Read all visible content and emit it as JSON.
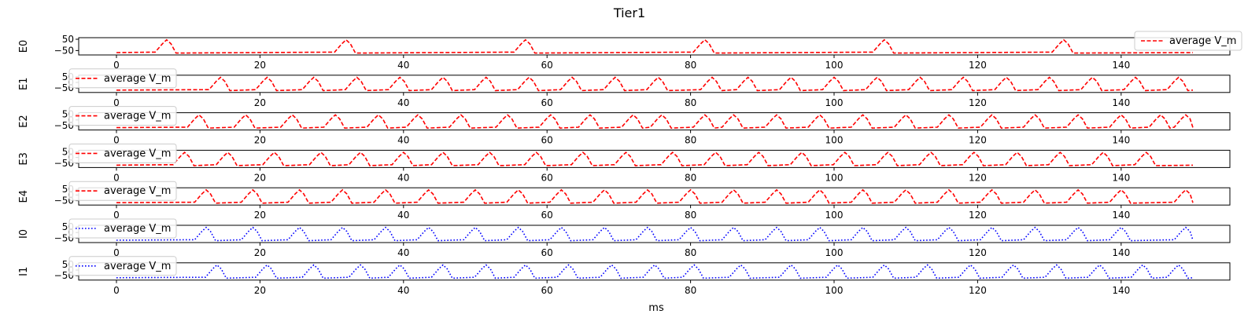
{
  "figure": {
    "title": "Tier1",
    "xlabel": "ms"
  },
  "chart_data": [
    {
      "type": "line",
      "ylabel": "E0",
      "legend_loc": "upper right",
      "series": [
        {
          "name": "average V_m",
          "color": "#ff0000",
          "style": "dashed",
          "spikes_ms": [
            7,
            32,
            57,
            82,
            107,
            132
          ]
        }
      ],
      "xlim": [
        0,
        150
      ],
      "ylim": [
        -75,
        50
      ],
      "xticks": [
        0,
        20,
        40,
        60,
        80,
        100,
        120,
        140
      ],
      "yticks": [
        50,
        -50
      ]
    },
    {
      "type": "line",
      "ylabel": "E1",
      "legend_loc": "upper left",
      "series": [
        {
          "name": "average V_m",
          "color": "#ff0000",
          "style": "dashed",
          "spikes_ms": [
            14.5,
            21,
            27.5,
            33.5,
            39.5,
            45.5,
            51.5,
            57.5,
            63.5,
            69.5,
            75.5,
            83,
            88,
            94,
            100,
            106,
            112,
            118,
            124,
            130,
            136,
            142,
            148
          ]
        }
      ],
      "xlim": [
        0,
        150
      ],
      "ylim": [
        -75,
        50
      ],
      "xticks": [
        0,
        20,
        40,
        60,
        80,
        100,
        120,
        140
      ],
      "yticks": [
        50,
        0,
        -50
      ]
    },
    {
      "type": "line",
      "ylabel": "E2",
      "legend_loc": "upper left",
      "series": [
        {
          "name": "average V_m",
          "color": "#ff0000",
          "style": "dashed",
          "spikes_ms": [
            11.5,
            18,
            24.5,
            30.5,
            36.5,
            42,
            48,
            54.5,
            60.5,
            66,
            72,
            76,
            82,
            86,
            92,
            98,
            104,
            110,
            116,
            122,
            128,
            134,
            140,
            145.5,
            149
          ]
        }
      ],
      "xlim": [
        0,
        150
      ],
      "ylim": [
        -75,
        50
      ],
      "xticks": [
        0,
        20,
        40,
        60,
        80,
        100,
        120,
        140
      ],
      "yticks": [
        50,
        0,
        -50
      ]
    },
    {
      "type": "line",
      "ylabel": "E3",
      "legend_loc": "upper left",
      "series": [
        {
          "name": "average V_m",
          "color": "#ff0000",
          "style": "dashed",
          "spikes_ms": [
            9.5,
            15.5,
            22,
            28.5,
            34,
            40,
            45.5,
            52,
            58.5,
            65,
            71,
            77.5,
            83.5,
            89.5,
            95.5,
            101.5,
            107.5,
            113.5,
            119.5,
            125.5,
            131.5,
            137.5,
            143.5
          ]
        }
      ],
      "xlim": [
        0,
        150
      ],
      "ylim": [
        -75,
        50
      ],
      "xticks": [
        0,
        20,
        40,
        60,
        80,
        100,
        120,
        140
      ],
      "yticks": [
        50,
        0,
        -50
      ]
    },
    {
      "type": "line",
      "ylabel": "E4",
      "legend_loc": "upper left",
      "series": [
        {
          "name": "average V_m",
          "color": "#ff0000",
          "style": "dashed",
          "spikes_ms": [
            12.5,
            19,
            25.5,
            31.5,
            37.5,
            43.5,
            50,
            56,
            62,
            68,
            74,
            80,
            86,
            92,
            98,
            104,
            110,
            116,
            122,
            128,
            134,
            140,
            149
          ]
        }
      ],
      "xlim": [
        0,
        150
      ],
      "ylim": [
        -75,
        50
      ],
      "xticks": [
        0,
        20,
        40,
        60,
        80,
        100,
        120,
        140
      ],
      "yticks": [
        50,
        0,
        -50
      ]
    },
    {
      "type": "line",
      "ylabel": "I0",
      "legend_loc": "upper left",
      "series": [
        {
          "name": "average V_m",
          "color": "#0000ff",
          "style": "dotted",
          "spikes_ms": [
            12.5,
            19,
            25.5,
            31.5,
            37.5,
            43.5,
            50,
            56,
            62,
            68,
            74,
            80,
            86,
            92,
            98,
            104,
            110,
            116,
            122,
            128,
            134,
            140,
            149
          ]
        }
      ],
      "xlim": [
        0,
        150
      ],
      "ylim": [
        -75,
        50
      ],
      "xticks": [
        0,
        20,
        40,
        60,
        80,
        100,
        120,
        140
      ],
      "yticks": [
        50,
        0,
        -50
      ]
    },
    {
      "type": "line",
      "ylabel": "I1",
      "legend_loc": "upper left",
      "series": [
        {
          "name": "average V_m",
          "color": "#0000ff",
          "style": "dotted",
          "spikes_ms": [
            14,
            21,
            27.5,
            34,
            39.5,
            45.5,
            51.5,
            57,
            63,
            69,
            75,
            80.5,
            87,
            94,
            100.5,
            107,
            113,
            119,
            125,
            131,
            137,
            143,
            148
          ]
        }
      ],
      "xlim": [
        0,
        150
      ],
      "ylim": [
        -75,
        50
      ],
      "xticks": [
        0,
        20,
        40,
        60,
        80,
        100,
        120,
        140
      ],
      "yticks": [
        50,
        0,
        -50
      ]
    }
  ]
}
